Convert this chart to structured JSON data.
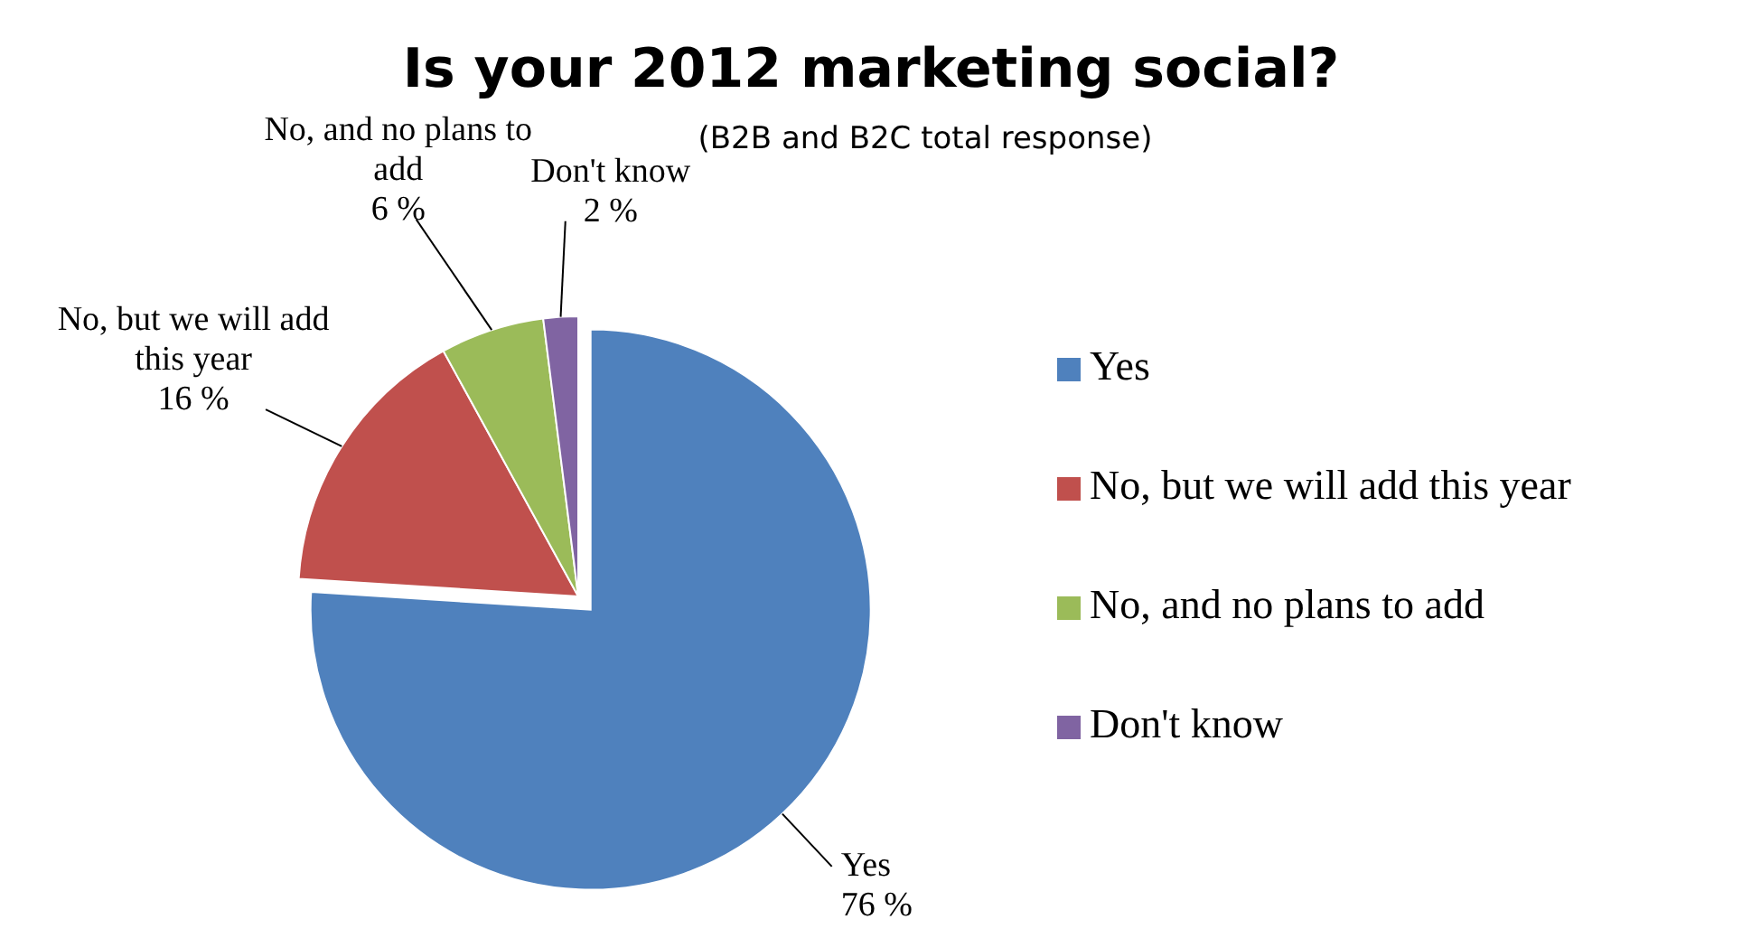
{
  "chart_data": {
    "type": "pie",
    "title": "Is your 2012 marketing social?",
    "subtitle": "(B2B and B2C total response)",
    "categories": [
      "Yes",
      "No, but we will add this year",
      "No, and no plans to add",
      "Don't know"
    ],
    "values": [
      76,
      16,
      6,
      2
    ],
    "value_labels": [
      "76 %",
      "16 %",
      "6 %",
      "2 %"
    ],
    "colors": [
      "#4f81bd",
      "#c0504d",
      "#9bbb59",
      "#8064a2"
    ],
    "legend": "right"
  }
}
